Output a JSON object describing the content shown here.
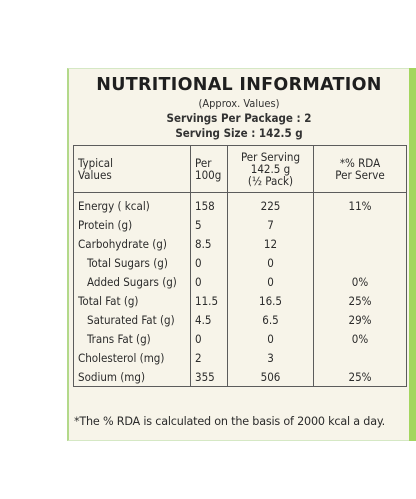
{
  "label": {
    "title": "NUTRITIONAL INFORMATION",
    "approx": "(Approx. Values)",
    "servings_per_package": "Servings Per Package : 2",
    "serving_size": "Serving Size : 142.5 g",
    "headers": {
      "col1": "Typical\nValues",
      "col2": "Per\n100g",
      "col3": "Per Serving\n142.5 g\n(½ Pack)",
      "col4": "*% RDA\nPer Serve"
    },
    "rows": [
      {
        "name": "Energy ( kcal)",
        "per100": "158",
        "perServing": "225",
        "rda": "11%"
      },
      {
        "name": "Protein (g)",
        "per100": "5",
        "perServing": "7",
        "rda": ""
      },
      {
        "name": "Carbohydrate (g)",
        "per100": "8.5",
        "perServing": "12",
        "rda": ""
      },
      {
        "name": "Total Sugars (g)",
        "per100": "0",
        "perServing": "0",
        "rda": ""
      },
      {
        "name": "Added Sugars (g)",
        "per100": "0",
        "perServing": "0",
        "rda": "0%"
      },
      {
        "name": "Total Fat (g)",
        "per100": "11.5",
        "perServing": "16.5",
        "rda": "25%"
      },
      {
        "name": "Saturated Fat (g)",
        "per100": "4.5",
        "perServing": "6.5",
        "rda": "29%"
      },
      {
        "name": "Trans Fat (g)",
        "per100": "0",
        "perServing": "0",
        "rda": "0%"
      },
      {
        "name": "Cholesterol (mg)",
        "per100": "2",
        "perServing": "3",
        "rda": ""
      },
      {
        "name": "Sodium (mg)",
        "per100": "355",
        "perServing": "506",
        "rda": "25%"
      }
    ],
    "footnote": "*The % RDA is calculated on the basis of 2000 kcal a day."
  },
  "colors": {
    "panel": "#f7f4e9",
    "accent_green": "#a4d65e",
    "text": "#2b2b2b"
  }
}
